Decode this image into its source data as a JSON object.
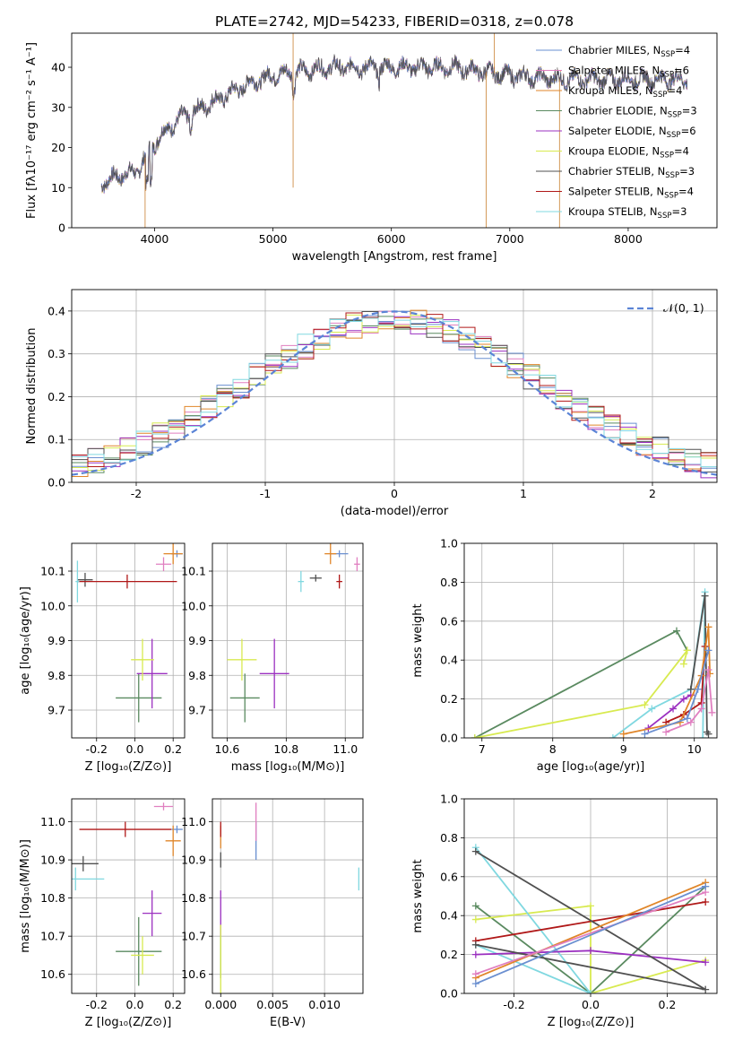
{
  "figure_title": "PLATE=2742, MJD=54233, FIBERID=0318, z=0.078",
  "colors": {
    "Chabrier MILES": "#6a8fd0",
    "Salpeter MILES": "#e07fc0",
    "Kroupa MILES": "#e0862a",
    "Chabrier ELODIE": "#5a8a60",
    "Salpeter ELODIE": "#9b30c0",
    "Kroupa ELODIE": "#d8ea50",
    "Chabrier STELIB": "#505050",
    "Salpeter STELIB": "#b01818",
    "Kroupa STELIB": "#80d8e0"
  },
  "chart_data": [
    {
      "type": "line",
      "title": "PLATE=2742, MJD=54233, FIBERID=0318, z=0.078",
      "xlabel": "wavelength [Angstrom, rest frame]",
      "ylabel": "Flux [fλ10⁻¹⁷ erg cm⁻² s⁻¹ A⁻¹]",
      "xlim": [
        3300,
        8750
      ],
      "ylim": [
        0,
        48.5
      ],
      "xticks": [
        4000,
        5000,
        6000,
        7000,
        8000
      ],
      "yticks": [
        0,
        10,
        20,
        30,
        40
      ],
      "legend_position": "top-right",
      "legend": [
        {
          "main": "Chabrier MILES, N",
          "sub": "SSP",
          "tail": "=4"
        },
        {
          "main": "Salpeter MILES, N",
          "sub": "SSP",
          "tail": "=6"
        },
        {
          "main": "Kroupa MILES, N",
          "sub": "SSP",
          "tail": "=4"
        },
        {
          "main": "Chabrier ELODIE, N",
          "sub": "SSP",
          "tail": "=3"
        },
        {
          "main": "Salpeter ELODIE, N",
          "sub": "SSP",
          "tail": "=6"
        },
        {
          "main": "Kroupa ELODIE, N",
          "sub": "SSP",
          "tail": "=4"
        },
        {
          "main": "Chabrier STELIB, N",
          "sub": "SSP",
          "tail": "=3"
        },
        {
          "main": "Salpeter STELIB, N",
          "sub": "SSP",
          "tail": "=4"
        },
        {
          "main": "Kroupa STELIB, N",
          "sub": "SSP",
          "tail": "=3"
        }
      ],
      "continuum": [
        [
          3550,
          11
        ],
        [
          3700,
          13
        ],
        [
          3850,
          14
        ],
        [
          3950,
          19
        ],
        [
          4050,
          23
        ],
        [
          4200,
          27
        ],
        [
          4400,
          30
        ],
        [
          4600,
          33
        ],
        [
          4800,
          36
        ],
        [
          5000,
          38
        ],
        [
          5200,
          39
        ],
        [
          5500,
          40
        ],
        [
          6000,
          40
        ],
        [
          6500,
          40
        ],
        [
          7000,
          38
        ],
        [
          7400,
          37
        ],
        [
          7800,
          37
        ],
        [
          8200,
          37
        ],
        [
          8500,
          37
        ]
      ],
      "spikes": [
        [
          3920,
          0
        ],
        [
          5170,
          10
        ],
        [
          5170,
          48.5
        ],
        [
          6800,
          0
        ],
        [
          6870,
          48.5
        ],
        [
          7420,
          0
        ]
      ]
    },
    {
      "type": "bar",
      "xlabel": "(data-model)/error",
      "ylabel": "Normed distribution",
      "xlim": [
        -2.5,
        2.5
      ],
      "ylim": [
        0,
        0.45
      ],
      "xticks": [
        -2,
        -1,
        0,
        1,
        2
      ],
      "yticks": [
        0.0,
        0.1,
        0.2,
        0.3,
        0.4
      ],
      "legend_position": "top-right",
      "legend": [
        "𝒩(0, 1)"
      ],
      "reference_curve": {
        "type": "gaussian",
        "mean": 0,
        "sigma": 1,
        "color": "#5b84d6"
      },
      "bin_width": 0.125
    },
    {
      "type": "scatter",
      "xlabel": "Z [log₁₀(Z/Z⊙)]",
      "ylabel": "age  [log₁₀(age/yr)]",
      "xlim": [
        -0.33,
        0.26
      ],
      "ylim": [
        9.62,
        10.18
      ],
      "xticks": [
        -0.2,
        0.0,
        0.2
      ],
      "yticks": [
        9.7,
        9.8,
        9.9,
        10.0,
        10.1
      ],
      "points": [
        {
          "model": "Chabrier MILES",
          "x": 0.22,
          "y": 10.15,
          "xerr": 0.03,
          "yerr": 0.01
        },
        {
          "model": "Salpeter MILES",
          "x": 0.15,
          "y": 10.12,
          "xerr": 0.04,
          "yerr": 0.02
        },
        {
          "model": "Kroupa MILES",
          "x": 0.2,
          "y": 10.15,
          "xerr": 0.05,
          "yerr": 0.03
        },
        {
          "model": "Chabrier ELODIE",
          "x": 0.02,
          "y": 9.735,
          "xerr": 0.12,
          "yerr": 0.07
        },
        {
          "model": "Salpeter ELODIE",
          "x": 0.09,
          "y": 9.805,
          "xerr": 0.08,
          "yerr": 0.1
        },
        {
          "model": "Kroupa ELODIE",
          "x": 0.04,
          "y": 9.845,
          "xerr": 0.06,
          "yerr": 0.06
        },
        {
          "model": "Chabrier STELIB",
          "x": -0.26,
          "y": 10.075,
          "xerr": 0.04,
          "yerr": 0.02
        },
        {
          "model": "Salpeter STELIB",
          "x": -0.04,
          "y": 10.07,
          "xerr": 0.26,
          "yerr": 0.02
        },
        {
          "model": "Kroupa STELIB",
          "x": -0.3,
          "y": 10.07,
          "xerr": 0.01,
          "yerr": 0.06
        }
      ]
    },
    {
      "type": "scatter",
      "xlabel": "mass [log₁₀(M/M⊙)]",
      "ylabel": "",
      "xlim": [
        10.55,
        11.06
      ],
      "ylim": [
        9.62,
        10.18
      ],
      "xticks": [
        10.6,
        10.8,
        11.0
      ],
      "yticks": [
        9.7,
        9.8,
        9.9,
        10.0,
        10.1
      ],
      "points": [
        {
          "model": "Chabrier MILES",
          "x": 10.98,
          "y": 10.15,
          "xerr": 0.03,
          "yerr": 0.01
        },
        {
          "model": "Salpeter MILES",
          "x": 11.04,
          "y": 10.12,
          "xerr": 0.01,
          "yerr": 0.02
        },
        {
          "model": "Kroupa MILES",
          "x": 10.95,
          "y": 10.15,
          "xerr": 0.02,
          "yerr": 0.03
        },
        {
          "model": "Chabrier ELODIE",
          "x": 10.66,
          "y": 9.735,
          "xerr": 0.05,
          "yerr": 0.07
        },
        {
          "model": "Salpeter ELODIE",
          "x": 10.76,
          "y": 9.805,
          "xerr": 0.05,
          "yerr": 0.1
        },
        {
          "model": "Kroupa ELODIE",
          "x": 10.65,
          "y": 9.845,
          "xerr": 0.05,
          "yerr": 0.06
        },
        {
          "model": "Chabrier STELIB",
          "x": 10.9,
          "y": 10.08,
          "xerr": 0.02,
          "yerr": 0.01
        },
        {
          "model": "Salpeter STELIB",
          "x": 10.98,
          "y": 10.07,
          "xerr": 0.01,
          "yerr": 0.02
        },
        {
          "model": "Kroupa STELIB",
          "x": 10.85,
          "y": 10.07,
          "xerr": 0.01,
          "yerr": 0.03
        }
      ]
    },
    {
      "type": "line",
      "xlabel": "age  [log₁₀(age/yr)]",
      "ylabel": "mass weight",
      "xlim": [
        6.75,
        10.32
      ],
      "ylim": [
        0,
        1.0
      ],
      "xticks": [
        7,
        8,
        9,
        10
      ],
      "yticks": [
        0.0,
        0.2,
        0.4,
        0.6,
        0.8,
        1.0
      ],
      "series": [
        {
          "model": "Chabrier ELODIE",
          "x": [
            6.9,
            9.75,
            9.9
          ],
          "y": [
            0.0,
            0.55,
            0.45
          ]
        },
        {
          "model": "Kroupa ELODIE",
          "x": [
            6.9,
            9.3,
            9.9,
            9.85
          ],
          "y": [
            0.0,
            0.17,
            0.45,
            0.38
          ]
        },
        {
          "model": "Kroupa STELIB",
          "x": [
            8.85,
            9.4,
            9.95,
            10.15,
            10.12
          ],
          "y": [
            0.0,
            0.15,
            0.25,
            0.75,
            0.0
          ]
        },
        {
          "model": "Salpeter ELODIE",
          "x": [
            9.35,
            9.7,
            9.85,
            9.95
          ],
          "y": [
            0.05,
            0.15,
            0.2,
            0.22
          ]
        },
        {
          "model": "Salpeter STELIB",
          "x": [
            9.6,
            9.85,
            10.1,
            10.15
          ],
          "y": [
            0.08,
            0.12,
            0.18,
            0.47
          ]
        },
        {
          "model": "Chabrier STELIB",
          "x": [
            9.95,
            10.15,
            10.18,
            10.2
          ],
          "y": [
            0.25,
            0.73,
            0.03,
            0.02
          ]
        },
        {
          "model": "Kroupa MILES",
          "x": [
            9.0,
            9.8,
            10.1,
            10.2,
            10.22
          ],
          "y": [
            0.02,
            0.08,
            0.32,
            0.57,
            0.33
          ]
        },
        {
          "model": "Salpeter MILES",
          "x": [
            9.6,
            9.95,
            10.1,
            10.2,
            10.25
          ],
          "y": [
            0.03,
            0.08,
            0.15,
            0.35,
            0.13
          ]
        },
        {
          "model": "Chabrier MILES",
          "x": [
            9.3,
            9.9,
            10.05,
            10.2
          ],
          "y": [
            0.02,
            0.1,
            0.25,
            0.45
          ]
        }
      ]
    },
    {
      "type": "scatter",
      "xlabel": "Z [log₁₀(Z/Z⊙)]",
      "ylabel": "mass [log₁₀(M/M⊙)]",
      "xlim": [
        -0.33,
        0.26
      ],
      "ylim": [
        10.55,
        11.06
      ],
      "xticks": [
        -0.2,
        0.0,
        0.2
      ],
      "yticks": [
        10.6,
        10.7,
        10.8,
        10.9,
        11.0
      ],
      "points": [
        {
          "model": "Chabrier MILES",
          "x": 0.22,
          "y": 10.98,
          "xerr": 0.03,
          "yerr": 0.01
        },
        {
          "model": "Salpeter MILES",
          "x": 0.15,
          "y": 11.04,
          "xerr": 0.05,
          "yerr": 0.01
        },
        {
          "model": "Kroupa MILES",
          "x": 0.2,
          "y": 10.95,
          "xerr": 0.04,
          "yerr": 0.04
        },
        {
          "model": "Chabrier ELODIE",
          "x": 0.02,
          "y": 10.66,
          "xerr": 0.12,
          "yerr": 0.09
        },
        {
          "model": "Salpeter ELODIE",
          "x": 0.09,
          "y": 10.76,
          "xerr": 0.05,
          "yerr": 0.06
        },
        {
          "model": "Kroupa ELODIE",
          "x": 0.04,
          "y": 10.65,
          "xerr": 0.06,
          "yerr": 0.05
        },
        {
          "model": "Chabrier STELIB",
          "x": -0.27,
          "y": 10.89,
          "xerr": 0.08,
          "yerr": 0.02
        },
        {
          "model": "Salpeter STELIB",
          "x": -0.05,
          "y": 10.98,
          "xerr": 0.24,
          "yerr": 0.02
        },
        {
          "model": "Kroupa STELIB",
          "x": -0.31,
          "y": 10.85,
          "xerr": 0.15,
          "yerr": 0.03
        }
      ]
    },
    {
      "type": "scatter",
      "xlabel": "E(B-V)",
      "ylabel": "",
      "xlim": [
        -0.0008,
        0.0137
      ],
      "ylim": [
        10.55,
        11.06
      ],
      "xticks": [
        0.0,
        0.005,
        0.01
      ],
      "yticks": [
        10.6,
        10.7,
        10.8,
        10.9,
        11.0
      ],
      "points": [
        {
          "model": "Chabrier MILES",
          "x": 0.0034,
          "y": 10.95,
          "xerr": 0,
          "yerr": 0.05
        },
        {
          "model": "Salpeter MILES",
          "x": 0.0034,
          "y": 11.0,
          "xerr": 0,
          "yerr": 0.05
        },
        {
          "model": "Kroupa MILES",
          "x": 0.0,
          "y": 10.96,
          "xerr": 0,
          "yerr": 0.03
        },
        {
          "model": "Chabrier ELODIE",
          "x": 0.0,
          "y": 10.66,
          "xerr": 0,
          "yerr": 0.07
        },
        {
          "model": "Salpeter ELODIE",
          "x": 0.0,
          "y": 10.76,
          "xerr": 0,
          "yerr": 0.06
        },
        {
          "model": "Kroupa ELODIE",
          "x": 0.0,
          "y": 10.64,
          "xerr": 0,
          "yerr": 0.09
        },
        {
          "model": "Chabrier STELIB",
          "x": 0.0,
          "y": 10.9,
          "xerr": 0,
          "yerr": 0.02
        },
        {
          "model": "Salpeter STELIB",
          "x": 0.0,
          "y": 10.98,
          "xerr": 0,
          "yerr": 0.02
        },
        {
          "model": "Kroupa STELIB",
          "x": 0.0133,
          "y": 10.85,
          "xerr": 0,
          "yerr": 0.03
        }
      ]
    },
    {
      "type": "line",
      "xlabel": "Z [log₁₀(Z/Z⊙)]",
      "ylabel": "mass weight",
      "xlim": [
        -0.33,
        0.33
      ],
      "ylim": [
        0,
        1.0
      ],
      "xticks": [
        -0.2,
        0.0,
        0.2
      ],
      "yticks": [
        0.0,
        0.2,
        0.4,
        0.6,
        0.8,
        1.0
      ],
      "series": [
        {
          "model": "Chabrier ELODIE",
          "x": [
            -0.3,
            0.0,
            0.3
          ],
          "y": [
            0.45,
            0.0,
            0.55
          ]
        },
        {
          "model": "Kroupa ELODIE",
          "x": [
            -0.3,
            0.0,
            0.0,
            0.3
          ],
          "y": [
            0.38,
            0.45,
            0.0,
            0.17
          ]
        },
        {
          "model": "Kroupa STELIB",
          "x": [
            -0.3,
            0.0,
            -0.3
          ],
          "y": [
            0.25,
            0.0,
            0.75
          ]
        },
        {
          "model": "Salpeter ELODIE",
          "x": [
            -0.3,
            0.0,
            0.3
          ],
          "y": [
            0.2,
            0.22,
            0.16
          ]
        },
        {
          "model": "Salpeter STELIB",
          "x": [
            -0.3,
            0.3
          ],
          "y": [
            0.27,
            0.47
          ]
        },
        {
          "model": "Chabrier STELIB",
          "x": [
            -0.3,
            0.3,
            -0.3
          ],
          "y": [
            0.25,
            0.02,
            0.73
          ]
        },
        {
          "model": "Kroupa MILES",
          "x": [
            -0.3,
            0.3
          ],
          "y": [
            0.08,
            0.57
          ]
        },
        {
          "model": "Salpeter MILES",
          "x": [
            -0.3,
            0.3
          ],
          "y": [
            0.1,
            0.52
          ]
        },
        {
          "model": "Chabrier MILES",
          "x": [
            -0.3,
            0.3
          ],
          "y": [
            0.05,
            0.55
          ]
        }
      ]
    }
  ]
}
